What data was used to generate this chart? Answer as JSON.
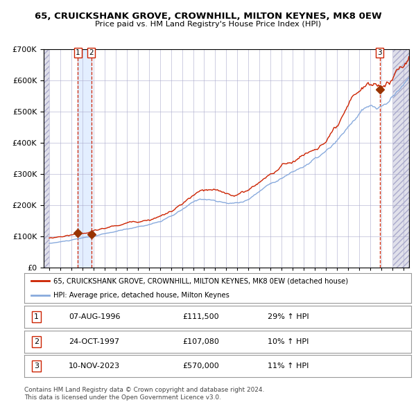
{
  "title": "65, CRUICKSHANK GROVE, CROWNHILL, MILTON KEYNES, MK8 0EW",
  "subtitle": "Price paid vs. HM Land Registry's House Price Index (HPI)",
  "legend_line1": "65, CRUICKSHANK GROVE, CROWNHILL, MILTON KEYNES, MK8 0EW (detached house)",
  "legend_line2": "HPI: Average price, detached house, Milton Keynes",
  "table_rows": [
    {
      "num": "1",
      "date": "07-AUG-1996",
      "price": "£111,500",
      "hpi": "29% ↑ HPI"
    },
    {
      "num": "2",
      "date": "24-OCT-1997",
      "price": "£107,080",
      "hpi": "10% ↑ HPI"
    },
    {
      "num": "3",
      "date": "10-NOV-2023",
      "price": "£570,000",
      "hpi": "11% ↑ HPI"
    }
  ],
  "footer": "Contains HM Land Registry data © Crown copyright and database right 2024.\nThis data is licensed under the Open Government Licence v3.0.",
  "sale_dates_num": [
    1996.597,
    1997.815,
    2023.863
  ],
  "sale_prices": [
    111500,
    107080,
    570000
  ],
  "hpi_color": "#88aadd",
  "price_color": "#cc2200",
  "marker_color": "#993300",
  "vline_color": "#cc2200",
  "shade_color": "#cce0ff",
  "hatch_color": "#ccccdd",
  "ylim": [
    0,
    700000
  ],
  "xlim_start": 1993.5,
  "xlim_end": 2026.5,
  "yticks": [
    0,
    100000,
    200000,
    300000,
    400000,
    500000,
    600000,
    700000
  ]
}
